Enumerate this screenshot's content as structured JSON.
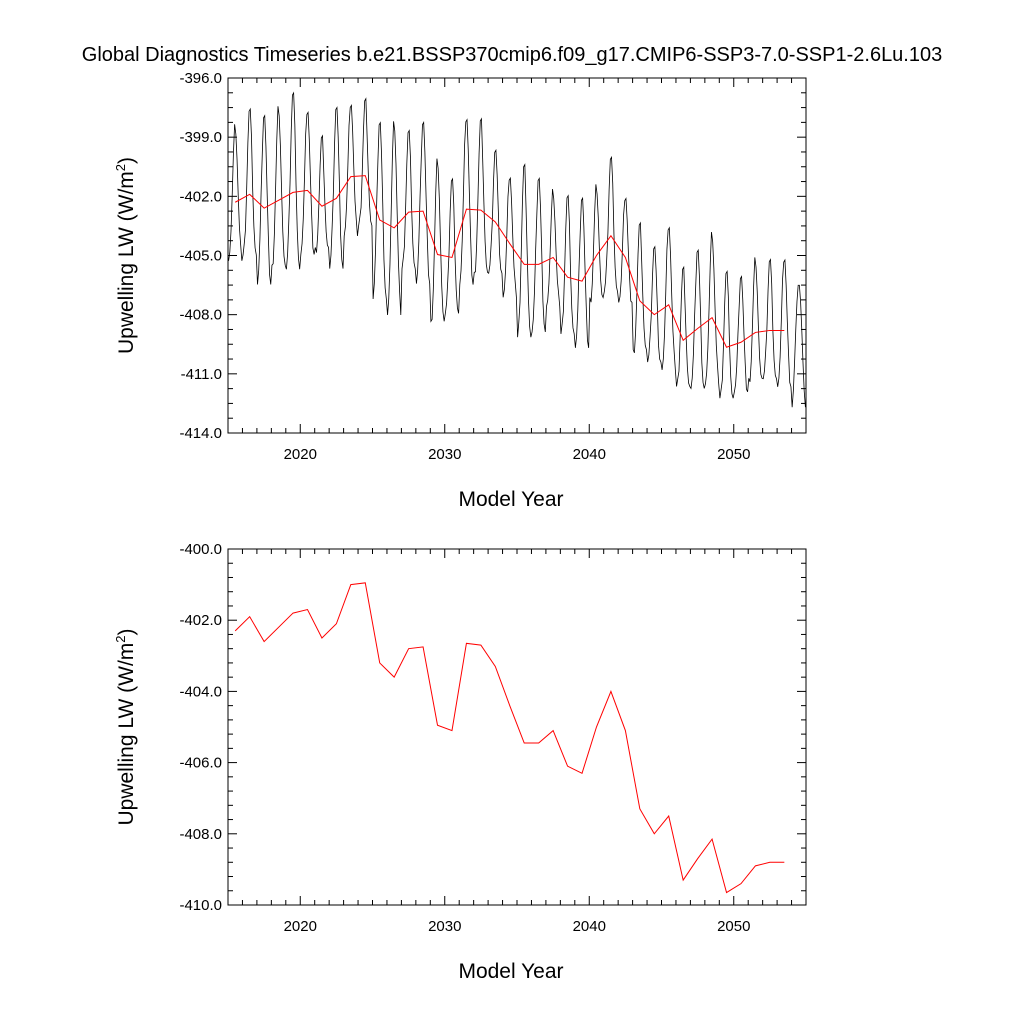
{
  "title": "Global Diagnostics Timeseries b.e21.BSSP370cmip6.f09_g17.CMIP6-SSP3-7.0-SSP1-2.6Lu.103",
  "chart_data": [
    {
      "type": "line",
      "xlabel": "Model Year",
      "ylabel_main": "Upwelling LW (W/m",
      "ylabel_sup": "2",
      "ylabel_close": ")",
      "xlim": [
        2015,
        2055
      ],
      "ylim": [
        -414.0,
        -396.0
      ],
      "xticks": [
        2020,
        2030,
        2040,
        2050
      ],
      "yticks": [
        -414.0,
        -411.0,
        -408.0,
        -405.0,
        -402.0,
        -399.0,
        -396.0
      ],
      "monthly_colors": {
        "monthly": "#000000",
        "annual": "#ff0000"
      },
      "monthly_amplitude": [
        3.3,
        3.8,
        4.4,
        4.2,
        4.6,
        3.7,
        2.9,
        4.2,
        3.4,
        3.3,
        4.6,
        4.8,
        3.6,
        4.2,
        4.3,
        3.5,
        4.3,
        4.0,
        3.2,
        3.1,
        4.5,
        4.0,
        2.8,
        3.6,
        3.9,
        3.0,
        3.5,
        2.7,
        3.3,
        3.0,
        3.7,
        3.1,
        3.6,
        3.7,
        3.3,
        3.0,
        3.2,
        3.1,
        3.3,
        2.9
      ],
      "series": [
        {
          "name": "",
          "role": "annual",
          "x": [
            2015.5,
            2016.5,
            2017.5,
            2018.5,
            2019.5,
            2020.5,
            2021.5,
            2022.5,
            2023.5,
            2024.5,
            2025.5,
            2026.5,
            2027.5,
            2028.5,
            2029.5,
            2030.5,
            2031.5,
            2032.5,
            2033.5,
            2034.5,
            2035.5,
            2036.5,
            2037.5,
            2038.5,
            2039.5,
            2040.5,
            2041.5,
            2042.5,
            2043.5,
            2044.5,
            2045.5,
            2046.5,
            2047.5,
            2048.5,
            2049.5,
            2050.5,
            2051.5,
            2052.5,
            2053.5
          ],
          "values": [
            -402.3,
            -401.9,
            -402.6,
            -402.2,
            -401.8,
            -401.7,
            -402.5,
            -402.1,
            -401.0,
            -400.95,
            -403.2,
            -403.6,
            -402.8,
            -402.75,
            -404.95,
            -405.1,
            -402.65,
            -402.7,
            -403.3,
            -404.4,
            -405.45,
            -405.45,
            -405.1,
            -406.1,
            -406.3,
            -405.0,
            -404.0,
            -405.1,
            -407.3,
            -408.0,
            -407.5,
            -409.3,
            -408.7,
            -408.15,
            -409.65,
            -409.4,
            -408.9,
            -408.8,
            -408.8
          ]
        }
      ]
    },
    {
      "type": "line",
      "xlabel": "Model Year",
      "ylabel_main": "Upwelling LW (W/m",
      "ylabel_sup": "2",
      "ylabel_close": ")",
      "xlim": [
        2015,
        2055
      ],
      "ylim": [
        -410.0,
        -400.0
      ],
      "xticks": [
        2020,
        2030,
        2040,
        2050
      ],
      "yticks": [
        -410.0,
        -408.0,
        -406.0,
        -404.0,
        -402.0,
        -400.0
      ],
      "series": [
        {
          "name": "",
          "role": "annual",
          "x": [
            2015.5,
            2016.5,
            2017.5,
            2018.5,
            2019.5,
            2020.5,
            2021.5,
            2022.5,
            2023.5,
            2024.5,
            2025.5,
            2026.5,
            2027.5,
            2028.5,
            2029.5,
            2030.5,
            2031.5,
            2032.5,
            2033.5,
            2034.5,
            2035.5,
            2036.5,
            2037.5,
            2038.5,
            2039.5,
            2040.5,
            2041.5,
            2042.5,
            2043.5,
            2044.5,
            2045.5,
            2046.5,
            2047.5,
            2048.5,
            2049.5,
            2050.5,
            2051.5,
            2052.5,
            2053.5
          ],
          "values": [
            -402.3,
            -401.9,
            -402.6,
            -402.2,
            -401.8,
            -401.7,
            -402.5,
            -402.1,
            -401.0,
            -400.95,
            -403.2,
            -403.6,
            -402.8,
            -402.75,
            -404.95,
            -405.1,
            -402.65,
            -402.7,
            -403.3,
            -404.4,
            -405.45,
            -405.45,
            -405.1,
            -406.1,
            -406.3,
            -405.0,
            -404.0,
            -405.1,
            -407.3,
            -408.0,
            -407.5,
            -409.3,
            -408.7,
            -408.15,
            -409.65,
            -409.4,
            -408.9,
            -408.8,
            -408.8
          ]
        }
      ]
    }
  ]
}
